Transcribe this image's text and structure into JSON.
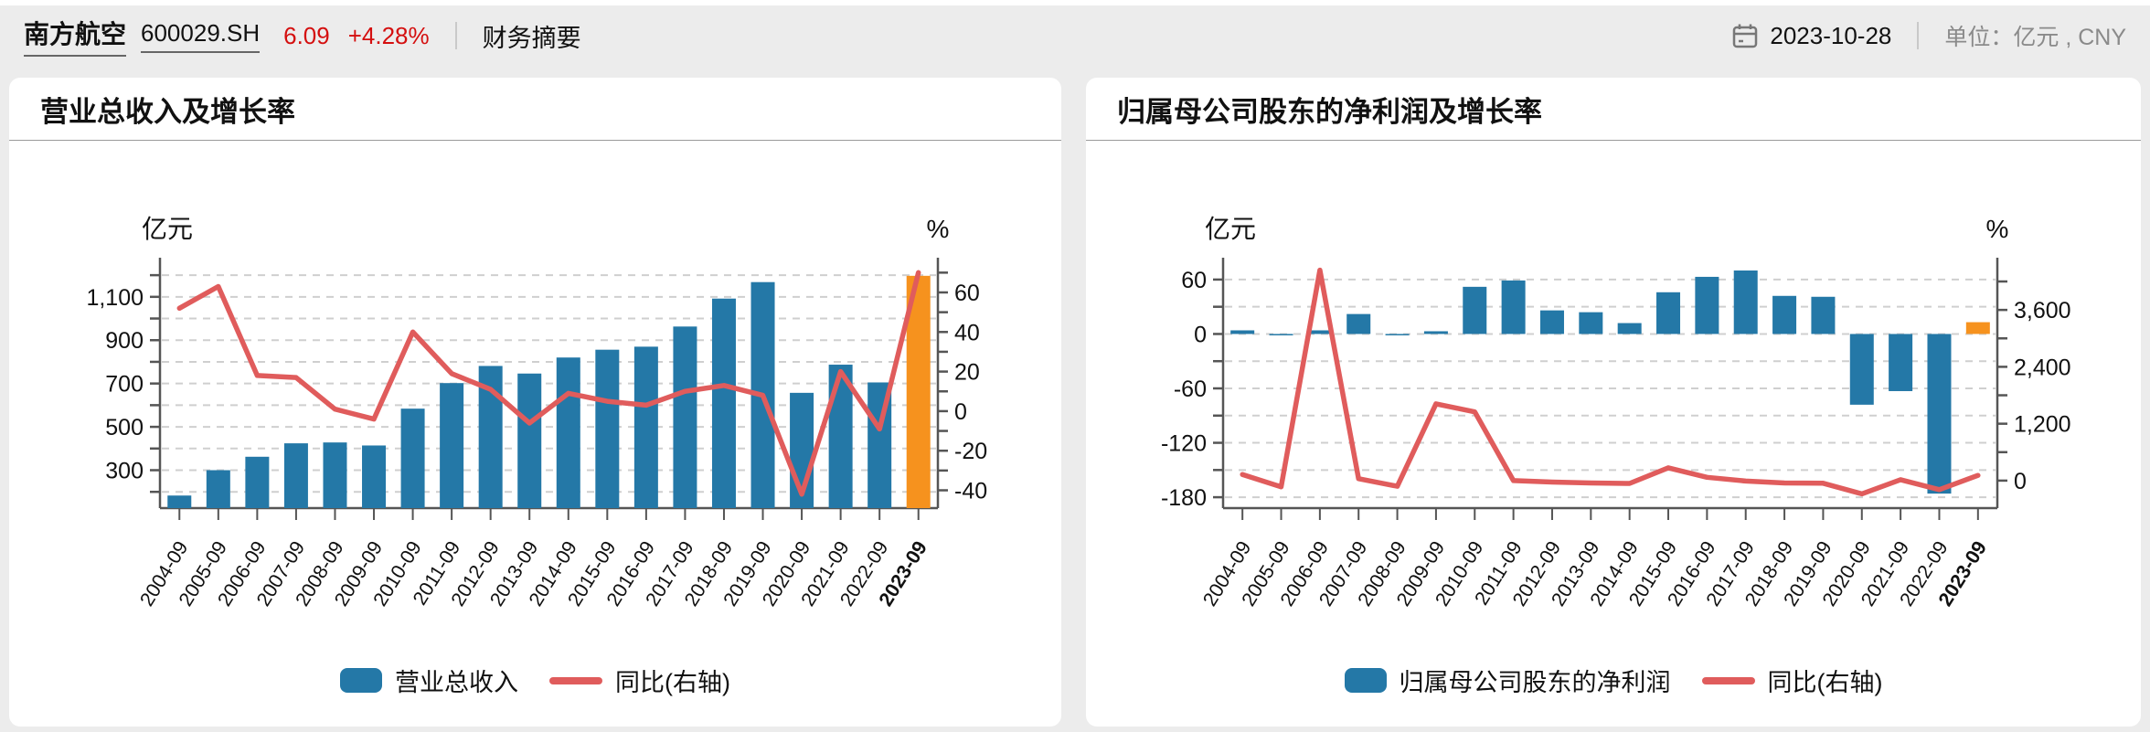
{
  "header": {
    "stock_name": "南方航空",
    "stock_code": "600029.SH",
    "price": "6.09",
    "change_pct": "+4.28%",
    "nav_label": "财务摘要",
    "date": "2023-10-28",
    "unit_label": "单位：亿元 , CNY"
  },
  "colors": {
    "bar_blue": "#2478a7",
    "orange": "#f6921e",
    "line_red": "#e05c5c",
    "grid": "#cfcfcf",
    "axis": "#555555",
    "text": "#111111",
    "price_red": "#d40f0f",
    "background": "#ececec",
    "card": "#ffffff"
  },
  "chart_data": [
    {
      "type": "bar+line",
      "title": "营业总收入及增长率",
      "categories": [
        "2004-09",
        "2005-09",
        "2006-09",
        "2007-09",
        "2008-09",
        "2009-09",
        "2010-09",
        "2011-09",
        "2012-09",
        "2013-09",
        "2014-09",
        "2015-09",
        "2016-09",
        "2017-09",
        "2018-09",
        "2019-09",
        "2020-09",
        "2021-09",
        "2022-09",
        "2023-09"
      ],
      "bold_last_category": true,
      "left_axis": {
        "unit": "亿元",
        "min": 125,
        "max": 1230,
        "tick_min": 200,
        "tick_max": 1200,
        "tick_step": 100,
        "grid": true,
        "label_values": [
          300,
          500,
          700,
          900,
          1100
        ],
        "label_texts": [
          "300",
          "500",
          "700",
          "900",
          "1,100"
        ]
      },
      "right_axis": {
        "unit": "%",
        "min": -49,
        "max": 72,
        "tick_min": -40,
        "tick_max": 70,
        "tick_step": 10,
        "grid": false,
        "label_values": [
          -40,
          -20,
          0,
          20,
          40,
          60
        ],
        "label_texts": [
          "-40",
          "-20",
          "0",
          "20",
          "40",
          "60"
        ]
      },
      "bar_series": {
        "name": "营业总收入",
        "baseline": "axis-min",
        "highlight_last": true,
        "values": [
          183,
          300,
          362,
          424,
          428,
          414,
          584,
          702,
          781,
          746,
          820,
          856,
          870,
          963,
          1092,
          1168,
          657,
          787,
          705,
          1197
        ]
      },
      "line_series": {
        "name": "同比(右轴)",
        "axis": "right",
        "values": [
          52,
          63,
          18,
          17,
          1,
          -4,
          40,
          19,
          11,
          -6,
          9,
          5,
          3,
          10,
          13,
          8,
          -42,
          20,
          -9,
          70
        ]
      }
    },
    {
      "type": "bar+line",
      "title": "归属母公司股东的净利润及增长率",
      "categories": [
        "2004-09",
        "2005-09",
        "2006-09",
        "2007-09",
        "2008-09",
        "2009-09",
        "2010-09",
        "2011-09",
        "2012-09",
        "2013-09",
        "2014-09",
        "2015-09",
        "2016-09",
        "2017-09",
        "2018-09",
        "2019-09",
        "2020-09",
        "2021-09",
        "2022-09",
        "2023-09"
      ],
      "bold_last_category": true,
      "left_axis": {
        "unit": "亿元",
        "min": -192,
        "max": 72,
        "tick_min": -180,
        "tick_max": 60,
        "tick_step": 30,
        "grid": true,
        "label_values": [
          -180,
          -120,
          -60,
          0,
          60
        ],
        "label_texts": [
          "-180",
          "-120",
          "-60",
          "0",
          "60"
        ]
      },
      "right_axis": {
        "unit": "%",
        "min": -580,
        "max": 4470,
        "tick_min": 0,
        "tick_max": 4200,
        "tick_step": 600,
        "grid": false,
        "label_values": [
          0,
          1200,
          2400,
          3600
        ],
        "label_texts": [
          "0",
          "1,200",
          "2,400",
          "3,600"
        ]
      },
      "bar_series": {
        "name": "归属母公司股东的净利润",
        "baseline": "zero",
        "highlight_last": true,
        "values": [
          4,
          -0.5,
          4,
          22,
          -0.5,
          3,
          52,
          59,
          26,
          24,
          12,
          46,
          63,
          70,
          42,
          41,
          -78,
          -63,
          -176,
          13
        ]
      },
      "line_series": {
        "name": "同比(右轴)",
        "axis": "right",
        "values": [
          130,
          -130,
          4440,
          40,
          -120,
          1620,
          1450,
          0,
          -30,
          -50,
          -60,
          270,
          70,
          -10,
          -50,
          -55,
          -280,
          20,
          -190,
          110
        ]
      }
    }
  ]
}
